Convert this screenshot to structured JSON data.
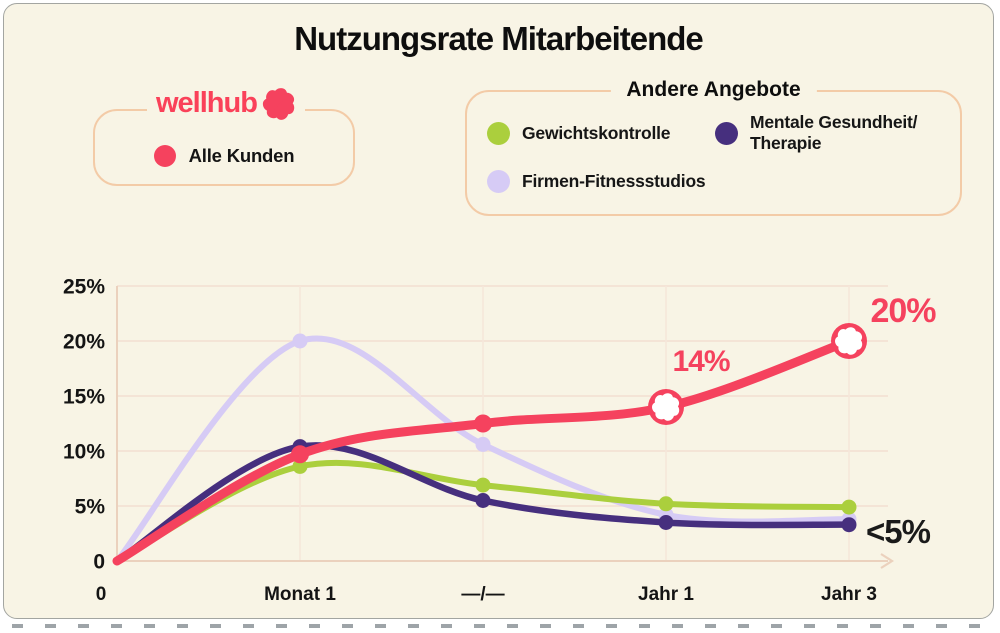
{
  "title": "Nutzungsrate Mitarbeitende",
  "colors": {
    "brand_pink": "#F5425E",
    "green": "#ABCF3D",
    "purple": "#462F7E",
    "lavender": "#D6CBF5",
    "card_bg": "#F8F4E5",
    "grid": "#F2DFD2",
    "axis": "#EBD1BD",
    "text_dark": "#141414"
  },
  "legend_wellhub": {
    "brand": "wellhub",
    "item": {
      "label": "Alle Kunden",
      "color": "#F5425E"
    }
  },
  "legend_other": {
    "title": "Andere Angebote",
    "items": [
      {
        "label": "Gewichtskontrolle",
        "label2": "",
        "color": "#ABCF3D"
      },
      {
        "label": "Mentale Gesundheit/",
        "label2": "Therapie",
        "color": "#462F7E"
      },
      {
        "label": "Firmen-Fitnessstudios",
        "label2": "",
        "color": "#D6CBF5"
      }
    ]
  },
  "chart_data": {
    "type": "line",
    "categories": [
      "0",
      "Monat 1",
      "—/—",
      "Jahr 1",
      "Jahr 3"
    ],
    "y_ticks": [
      "25%",
      "20%",
      "15%",
      "10%",
      "5%",
      "0"
    ],
    "y_tick_values": [
      25,
      20,
      15,
      10,
      5,
      0
    ],
    "ylim": [
      0,
      25
    ],
    "grid": true,
    "series": [
      {
        "name": "Firmen-Fitnessstudios",
        "color": "#D6CBF5",
        "width": 6,
        "values": [
          0,
          20,
          10.6,
          4.2,
          3.8
        ]
      },
      {
        "name": "Gewichtskontrolle",
        "color": "#ABCF3D",
        "width": 6,
        "values": [
          0,
          8.6,
          6.9,
          5.2,
          4.9
        ]
      },
      {
        "name": "Mentale Gesundheit/Therapie",
        "color": "#462F7E",
        "width": 6.5,
        "values": [
          0,
          10.4,
          5.5,
          3.5,
          3.3
        ]
      },
      {
        "name": "Alle Kunden",
        "color": "#F5425E",
        "width": 9,
        "values": [
          0,
          9.7,
          12.5,
          14,
          20
        ],
        "flower_markers": [
          3,
          4
        ]
      }
    ],
    "annotations": [
      {
        "text": "14%",
        "color": "#F5425E"
      },
      {
        "text": "20%",
        "color": "#F5425E"
      },
      {
        "text": "<5%",
        "color": "#1A1A1A"
      }
    ]
  }
}
